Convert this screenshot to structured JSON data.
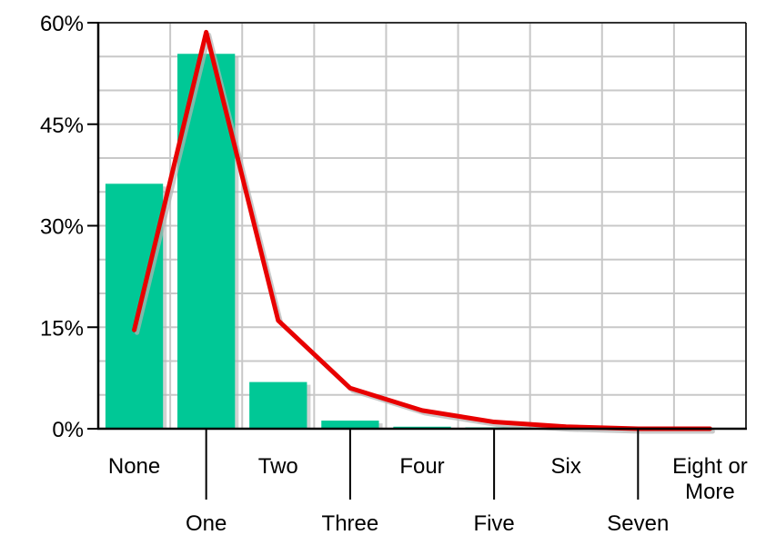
{
  "chart_data": {
    "type": "bar",
    "title": "",
    "xlabel": "",
    "ylabel": "",
    "categories": [
      "None",
      "One",
      "Two",
      "Three",
      "Four",
      "Five",
      "Six",
      "Seven",
      "Eight or More"
    ],
    "category_lines": [
      [
        "None"
      ],
      [
        "One"
      ],
      [
        "Two"
      ],
      [
        "Three"
      ],
      [
        "Four"
      ],
      [
        "Five"
      ],
      [
        "Six"
      ],
      [
        "Seven"
      ],
      [
        "Eight or",
        "More"
      ]
    ],
    "series": [
      {
        "type": "bar",
        "values": [
          36.2,
          55.4,
          6.9,
          1.2,
          0.3,
          0.2,
          0.1,
          0.0,
          0.0
        ],
        "color": "#00c896"
      },
      {
        "type": "line",
        "values": [
          14.6,
          58.6,
          16.0,
          6.0,
          2.7,
          1.0,
          0.3,
          0.0,
          0.0
        ],
        "color": "#e80000"
      }
    ],
    "ylim": [
      0,
      60
    ],
    "yticks": [
      0,
      15,
      30,
      45,
      60
    ],
    "ytick_labels": [
      "0%",
      "15%",
      "30%",
      "45%",
      "60%"
    ],
    "grid": true,
    "legend": "none",
    "colors": {
      "grid": "#c8c8c8",
      "axis": "#000000",
      "shadow": "#b4b4b4"
    }
  }
}
